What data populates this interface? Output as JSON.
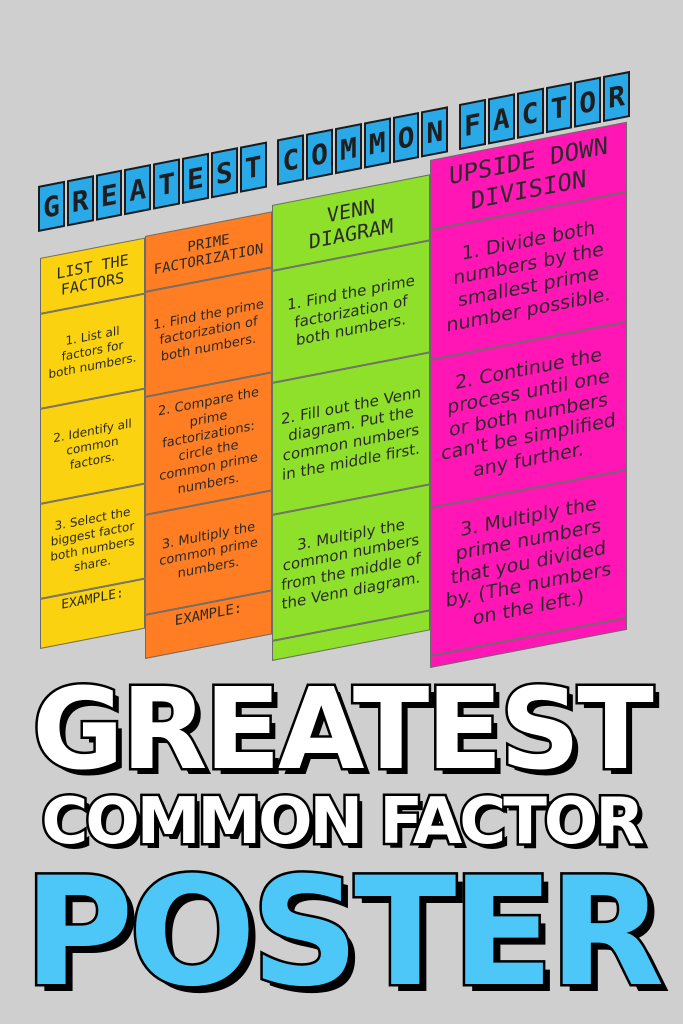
{
  "banner": {
    "letters": [
      "G",
      "R",
      "E",
      "A",
      "T",
      "E",
      "S",
      "T",
      " ",
      "C",
      "O",
      "M",
      "M",
      "O",
      "N",
      " ",
      "F",
      "A",
      "C",
      "T",
      "O",
      "R"
    ]
  },
  "columns": [
    {
      "header": "List the Factors",
      "steps": [
        "1. List all factors for both numbers.",
        "2. Identify all common factors.",
        "3. Select the biggest factor both numbers share."
      ],
      "example": "EXAMPLE:"
    },
    {
      "header": "Prime Factorization",
      "steps": [
        "1. Find the prime factorization of both numbers.",
        "2. Compare the prime factorizations: circle the common prime numbers.",
        "3. Multiply the common prime numbers."
      ],
      "example": "EXAMPLE:"
    },
    {
      "header": "Venn Diagram",
      "steps": [
        "1. Find the prime factorization of both numbers.",
        "2. Fill out the Venn diagram. Put the common numbers in the middle first.",
        "3. Multiply the common numbers from the middle of the Venn diagram."
      ],
      "example": ""
    },
    {
      "header": "Upside Down Division",
      "steps": [
        "1. Divide both numbers by the smallest prime number possible.",
        "2. Continue the process until one or both numbers can't be simplified any further.",
        "3. Multiply the prime numbers that you divided by. (The numbers on the left.)"
      ],
      "example": ""
    }
  ],
  "overlay": {
    "line1": "GREATEST",
    "line2": "COMMON FACTOR",
    "line3": "POSTER"
  },
  "colors": {
    "yellow": "#fbd20f",
    "orange": "#ff7e24",
    "green": "#8fe02a",
    "pink": "#ff16b4",
    "blue": "#29a9e8",
    "poster_text": "#4cc7f7"
  }
}
